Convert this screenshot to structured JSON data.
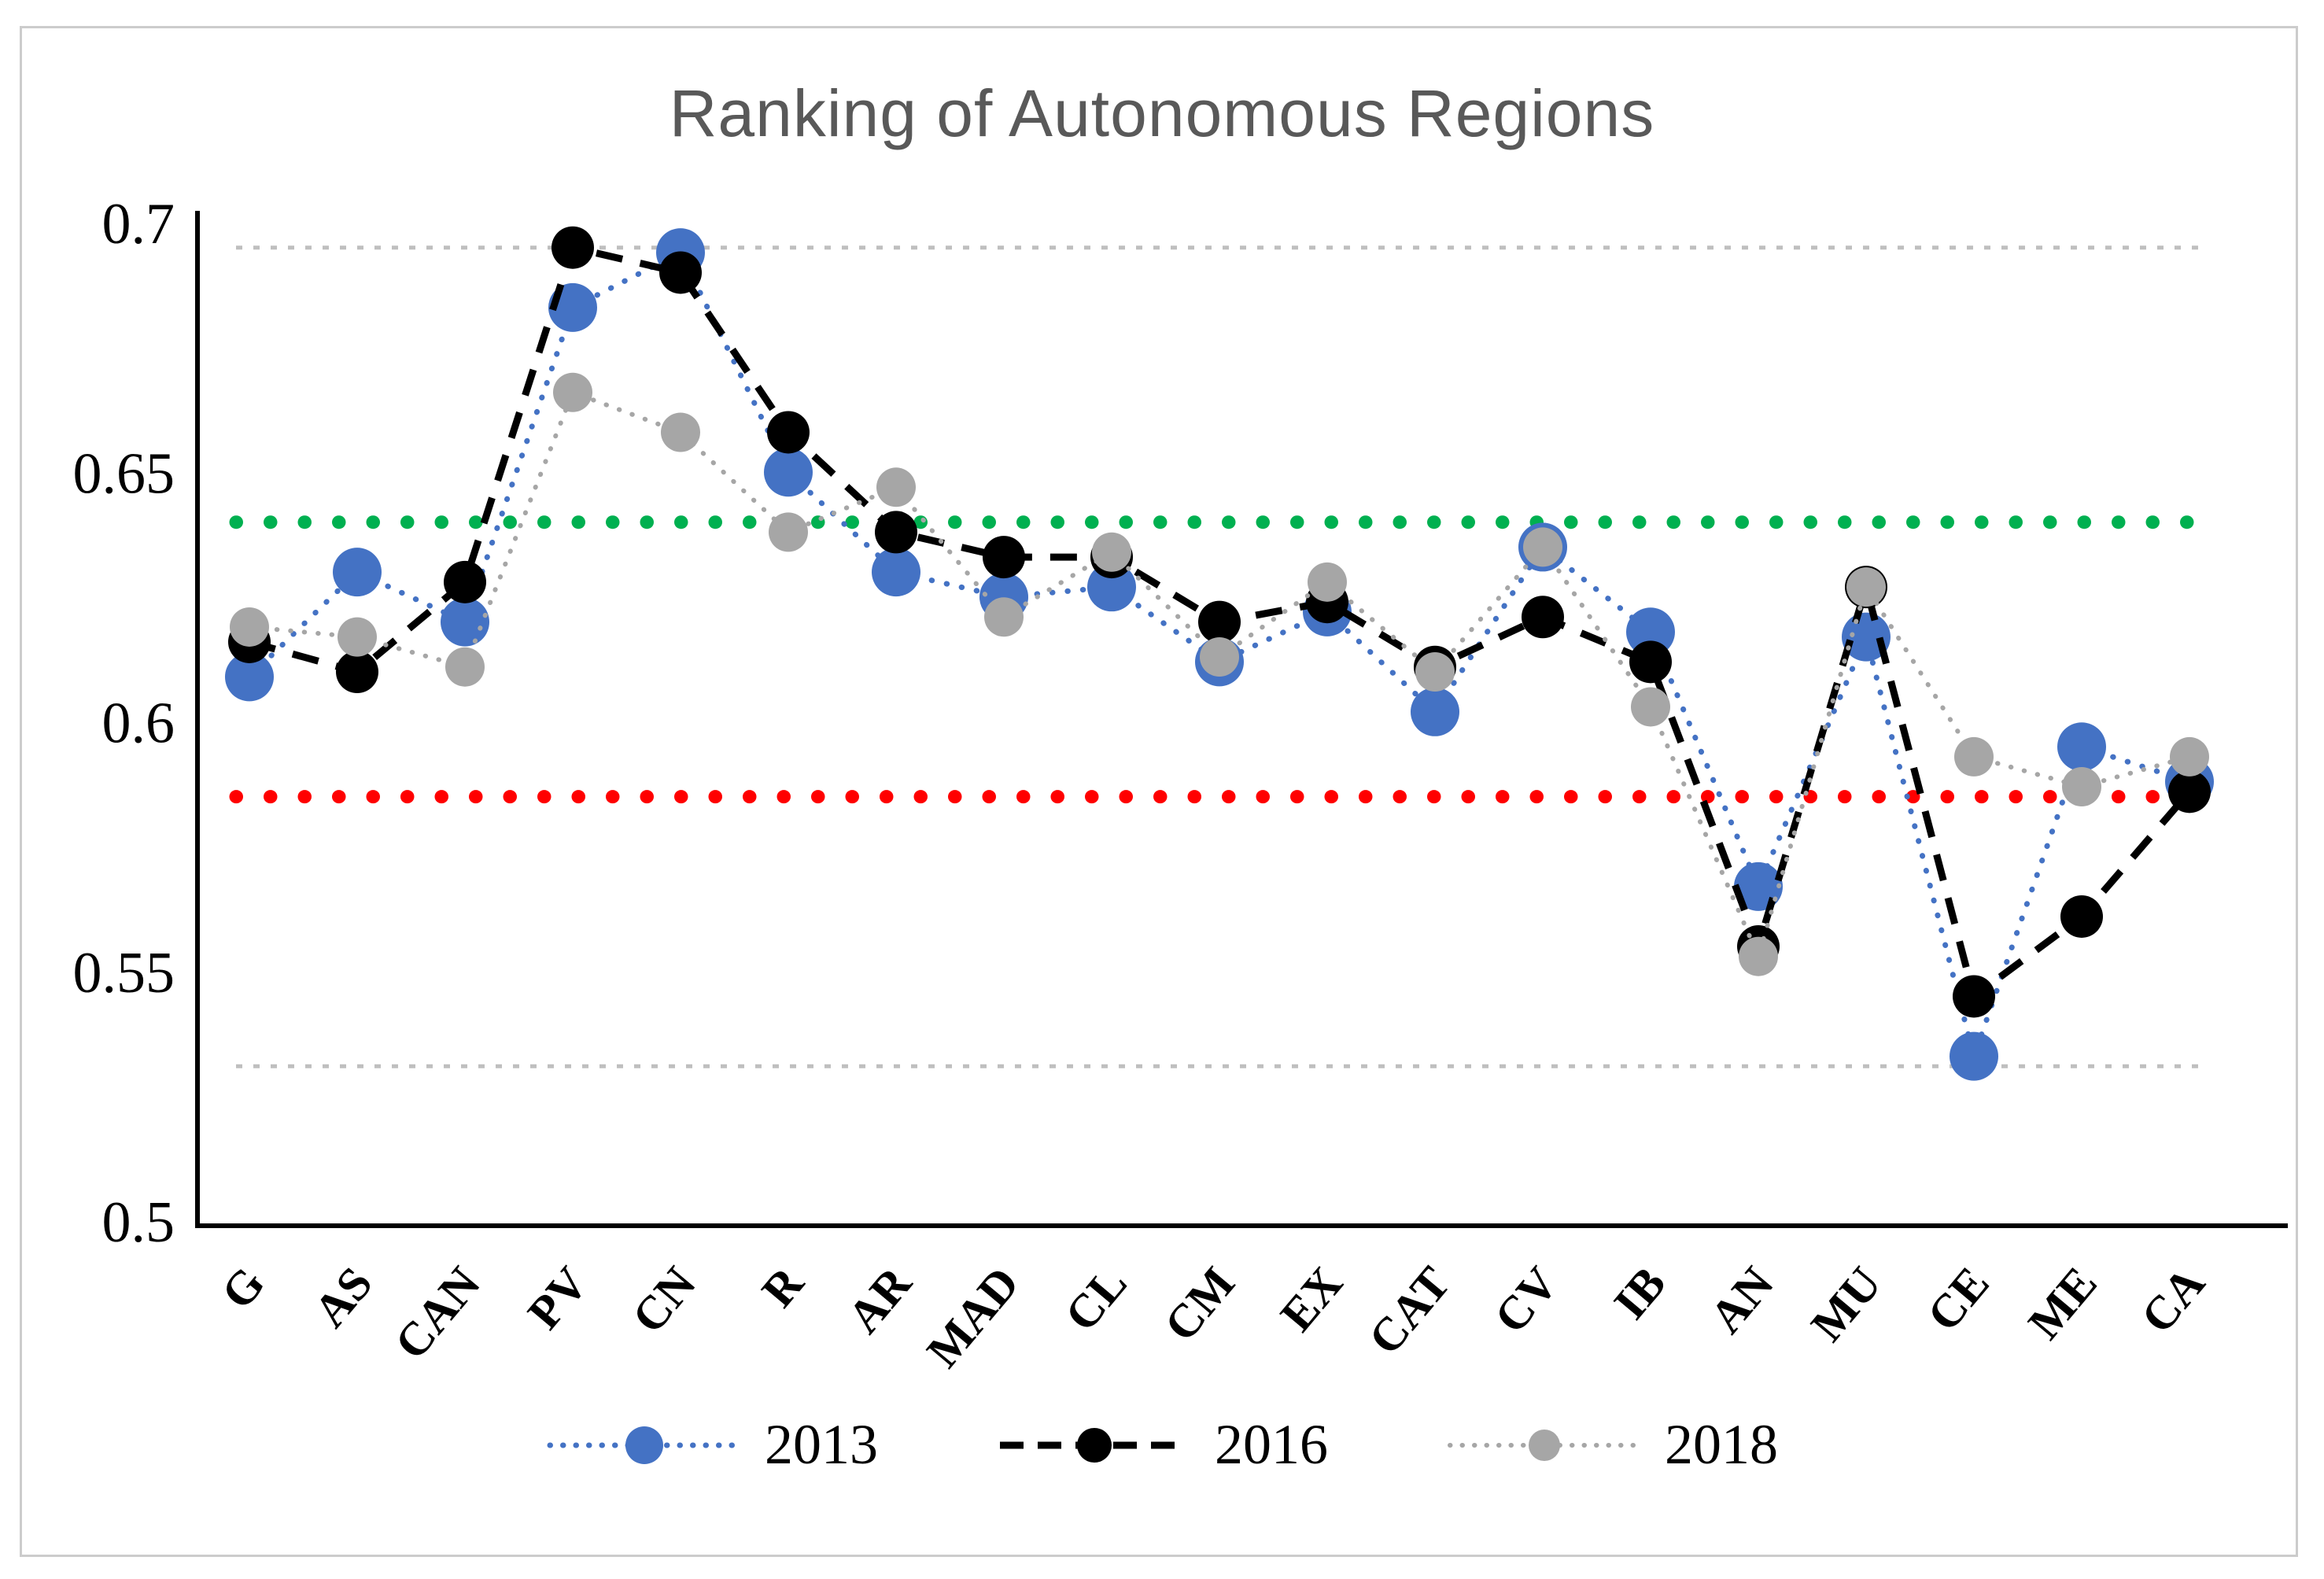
{
  "chart_data": {
    "type": "line",
    "title": "Ranking of Autonomous Regions",
    "title_color": "#595959",
    "categories": [
      "G",
      "AS",
      "CAN",
      "PV",
      "CN",
      "R",
      "AR",
      "MAD",
      "CL",
      "CM",
      "EX",
      "CAT",
      "CV",
      "IB",
      "AN",
      "MU",
      "CE",
      "ME",
      "CA"
    ],
    "series": [
      {
        "name": "2013",
        "color": "#4472C4",
        "line_style": "dotted",
        "marker": "circle",
        "marker_radius": 31,
        "values": [
          0.609,
          0.63,
          0.62,
          0.683,
          0.694,
          0.65,
          0.63,
          0.625,
          0.627,
          0.612,
          0.622,
          0.602,
          0.635,
          0.618,
          0.567,
          0.617,
          0.533,
          0.595,
          0.588
        ]
      },
      {
        "name": "2016",
        "color": "#000000",
        "line_style": "dashed",
        "marker": "circle",
        "marker_radius": 27,
        "values": [
          0.616,
          0.61,
          0.628,
          0.695,
          0.69,
          0.658,
          0.638,
          0.633,
          0.633,
          0.62,
          0.624,
          0.611,
          0.621,
          0.612,
          0.555,
          0.627,
          0.545,
          0.561,
          0.586
        ]
      },
      {
        "name": "2018",
        "color": "#A6A6A6",
        "line_style": "dotted",
        "marker": "circle",
        "marker_radius": 25,
        "values": [
          0.619,
          0.617,
          0.611,
          0.666,
          0.658,
          0.638,
          0.647,
          0.621,
          0.634,
          0.613,
          0.628,
          0.61,
          0.635,
          0.603,
          0.553,
          0.627,
          0.593,
          0.587,
          0.593
        ]
      }
    ],
    "reference_lines": [
      {
        "value": 0.695,
        "color": "#BFBFBF",
        "style": "fine-dotted"
      },
      {
        "value": 0.64,
        "color": "#00B050",
        "style": "round-dotted"
      },
      {
        "value": 0.585,
        "color": "#FF0000",
        "style": "round-dotted"
      },
      {
        "value": 0.531,
        "color": "#BFBFBF",
        "style": "fine-dotted"
      }
    ],
    "y_axis": {
      "min": 0.5,
      "max": 0.7,
      "tick_labels": [
        "0.7",
        "0.65",
        "0.6",
        "0.55",
        "0.5"
      ],
      "tick_values": [
        0.7,
        0.65,
        0.6,
        0.55,
        0.5
      ]
    },
    "x_axis": {
      "label_rotation_deg": -50
    },
    "legend_position": "bottom",
    "grid": false
  }
}
